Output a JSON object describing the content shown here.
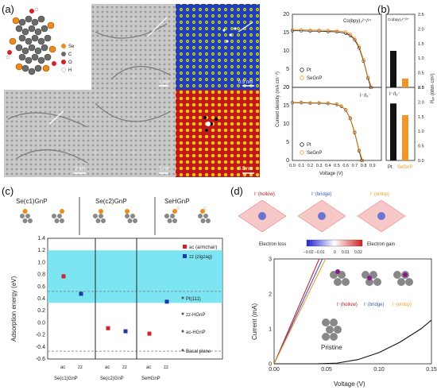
{
  "panel_labels": [
    "(a)",
    "(b)",
    "(c)",
    "(d)"
  ],
  "panel_a": {
    "atom_legend": [
      "Se",
      "C",
      "O",
      "H"
    ],
    "scalebars": [
      "1 nm",
      "0.5 nm",
      "2 nm",
      "1 nm",
      "0.5 nm"
    ]
  },
  "panel_b": {
    "top_label": "Co(bpy)₃²⁺/³⁺",
    "bottom_label": "I⁻/I₃⁻",
    "ylabel": "Current density (mA cm⁻²)",
    "xlabel": "Voltage (V)",
    "legend": [
      "Pt",
      "SeGnP"
    ],
    "rct_top_label": "Co(bpy)₃²⁺/³⁺",
    "rct_bottom_label": "I⁻/I₃⁻",
    "rct_ylabel": "Rₑₜ (ohm·cm²)",
    "rct_xlabels": [
      "Pt",
      "SeGnP"
    ]
  },
  "panel_c": {
    "headers": [
      "Se(c1)GnP",
      "Se(c2)GnP",
      "SeHGnP"
    ],
    "legend": [
      "ac (armchair)",
      "zz (zigzag)"
    ],
    "ylabel": "Adsorption energy (eV)",
    "ref_labels": [
      "Pt(111)",
      "zz-HGnP",
      "ac-HGnP",
      "Basal plane"
    ],
    "group_labels": [
      "Se(c1)GnP",
      "Se(c2)GnP",
      "SeHGnP"
    ],
    "tick_sub": [
      "ac",
      "zz"
    ]
  },
  "panel_d": {
    "top_labels": [
      "I⁻(hollow)",
      "I⁻(bridge)",
      "I⁻(ontop)"
    ],
    "colorbar_left": "Electron loss",
    "colorbar_right": "Electron gain",
    "colorbar_ticks": [
      "−0.02",
      "−0.01",
      "0",
      "0.01",
      "0.02"
    ],
    "ylabel": "Current (mA)",
    "xlabel": "Voltage (V)",
    "pristine_label": "Pristine"
  },
  "chart_data": [
    {
      "id": "b-top",
      "type": "line",
      "title": "Co(bpy)3 2+/3+",
      "xlabel": "Voltage (V)",
      "ylabel": "Current density (mA cm-2)",
      "xlim": [
        0.0,
        1.0
      ],
      "ylim": [
        0,
        20
      ],
      "series": [
        {
          "name": "Pt",
          "color": "#222222",
          "x": [
            0,
            0.1,
            0.2,
            0.3,
            0.4,
            0.5,
            0.6,
            0.65,
            0.7,
            0.75,
            0.8,
            0.85,
            0.88
          ],
          "y": [
            15.5,
            15.5,
            15.4,
            15.4,
            15.3,
            15.2,
            14.8,
            14.2,
            13.0,
            10.8,
            7.2,
            2.5,
            0
          ]
        },
        {
          "name": "SeGnP",
          "color": "#f0962a",
          "x": [
            0,
            0.1,
            0.2,
            0.3,
            0.4,
            0.5,
            0.6,
            0.65,
            0.7,
            0.75,
            0.8,
            0.85,
            0.89
          ],
          "y": [
            15.8,
            15.8,
            15.7,
            15.7,
            15.6,
            15.5,
            15.2,
            14.6,
            13.4,
            11.2,
            7.6,
            2.8,
            0
          ]
        }
      ]
    },
    {
      "id": "b-bottom",
      "type": "line",
      "title": "I-/I3-",
      "xlabel": "Voltage (V)",
      "xlim": [
        0.0,
        1.0
      ],
      "ylim": [
        0,
        20
      ],
      "series": [
        {
          "name": "Pt",
          "color": "#222222",
          "x": [
            0,
            0.1,
            0.2,
            0.3,
            0.4,
            0.5,
            0.55,
            0.6,
            0.65,
            0.7,
            0.75,
            0.78
          ],
          "y": [
            15.8,
            15.8,
            15.7,
            15.7,
            15.6,
            15.3,
            14.8,
            13.8,
            11.5,
            7.6,
            2.6,
            0
          ]
        },
        {
          "name": "SeGnP",
          "color": "#f0962a",
          "x": [
            0,
            0.1,
            0.2,
            0.3,
            0.4,
            0.5,
            0.55,
            0.6,
            0.65,
            0.7,
            0.75,
            0.79
          ],
          "y": [
            15.9,
            15.9,
            15.8,
            15.8,
            15.7,
            15.4,
            14.9,
            13.9,
            11.7,
            7.9,
            2.9,
            0
          ]
        }
      ]
    },
    {
      "id": "b-rct",
      "type": "bar",
      "ylabel": "Rct (ohm cm2)",
      "ylim": [
        0,
        2.5
      ],
      "categories": [
        "Pt",
        "SeGnP"
      ],
      "series": [
        {
          "name": "Co(bpy)3 2+/3+",
          "values": [
            1.25,
            0.3
          ]
        },
        {
          "name": "I-/I3-",
          "values": [
            1.95,
            1.55
          ]
        }
      ]
    },
    {
      "id": "c",
      "type": "scatter",
      "ylabel": "Adsorption energy (eV)",
      "ylim": [
        -0.6,
        1.4
      ],
      "categories": [
        "Se(c1)GnP",
        "Se(c2)GnP",
        "SeHGnP"
      ],
      "series": [
        {
          "name": "ac (armchair)",
          "color": "#d0202a",
          "values": [
            0.77,
            -0.09,
            -0.18
          ]
        },
        {
          "name": "zz (zigzag)",
          "color": "#1c3aa8",
          "values": [
            0.48,
            -0.14,
            0.35
          ]
        }
      ],
      "band": [
        0.33,
        1.2
      ],
      "reference_lines": [
        {
          "label": "Pt(111)",
          "value": 0.52
        },
        {
          "label": "Basal plane",
          "value": -0.47
        }
      ]
    },
    {
      "id": "d",
      "type": "line",
      "xlabel": "Voltage (V)",
      "ylabel": "Current (mA)",
      "xlim": [
        0.0,
        0.15
      ],
      "ylim": [
        0,
        3
      ],
      "series": [
        {
          "name": "hollow",
          "color": "#d0202a",
          "x": [
            0,
            0.043
          ],
          "y": [
            0,
            3
          ]
        },
        {
          "name": "bridge",
          "color": "#3a5bc8",
          "x": [
            0,
            0.046
          ],
          "y": [
            0,
            3
          ]
        },
        {
          "name": "ontop",
          "color": "#e8a020",
          "x": [
            0,
            0.049
          ],
          "y": [
            0,
            3
          ]
        },
        {
          "name": "Pristine",
          "color": "#111111",
          "x": [
            0,
            0.04,
            0.06,
            0.08,
            0.1,
            0.12,
            0.14,
            0.15
          ],
          "y": [
            0,
            0,
            0.02,
            0.12,
            0.32,
            0.62,
            1.0,
            1.25
          ]
        }
      ]
    }
  ]
}
